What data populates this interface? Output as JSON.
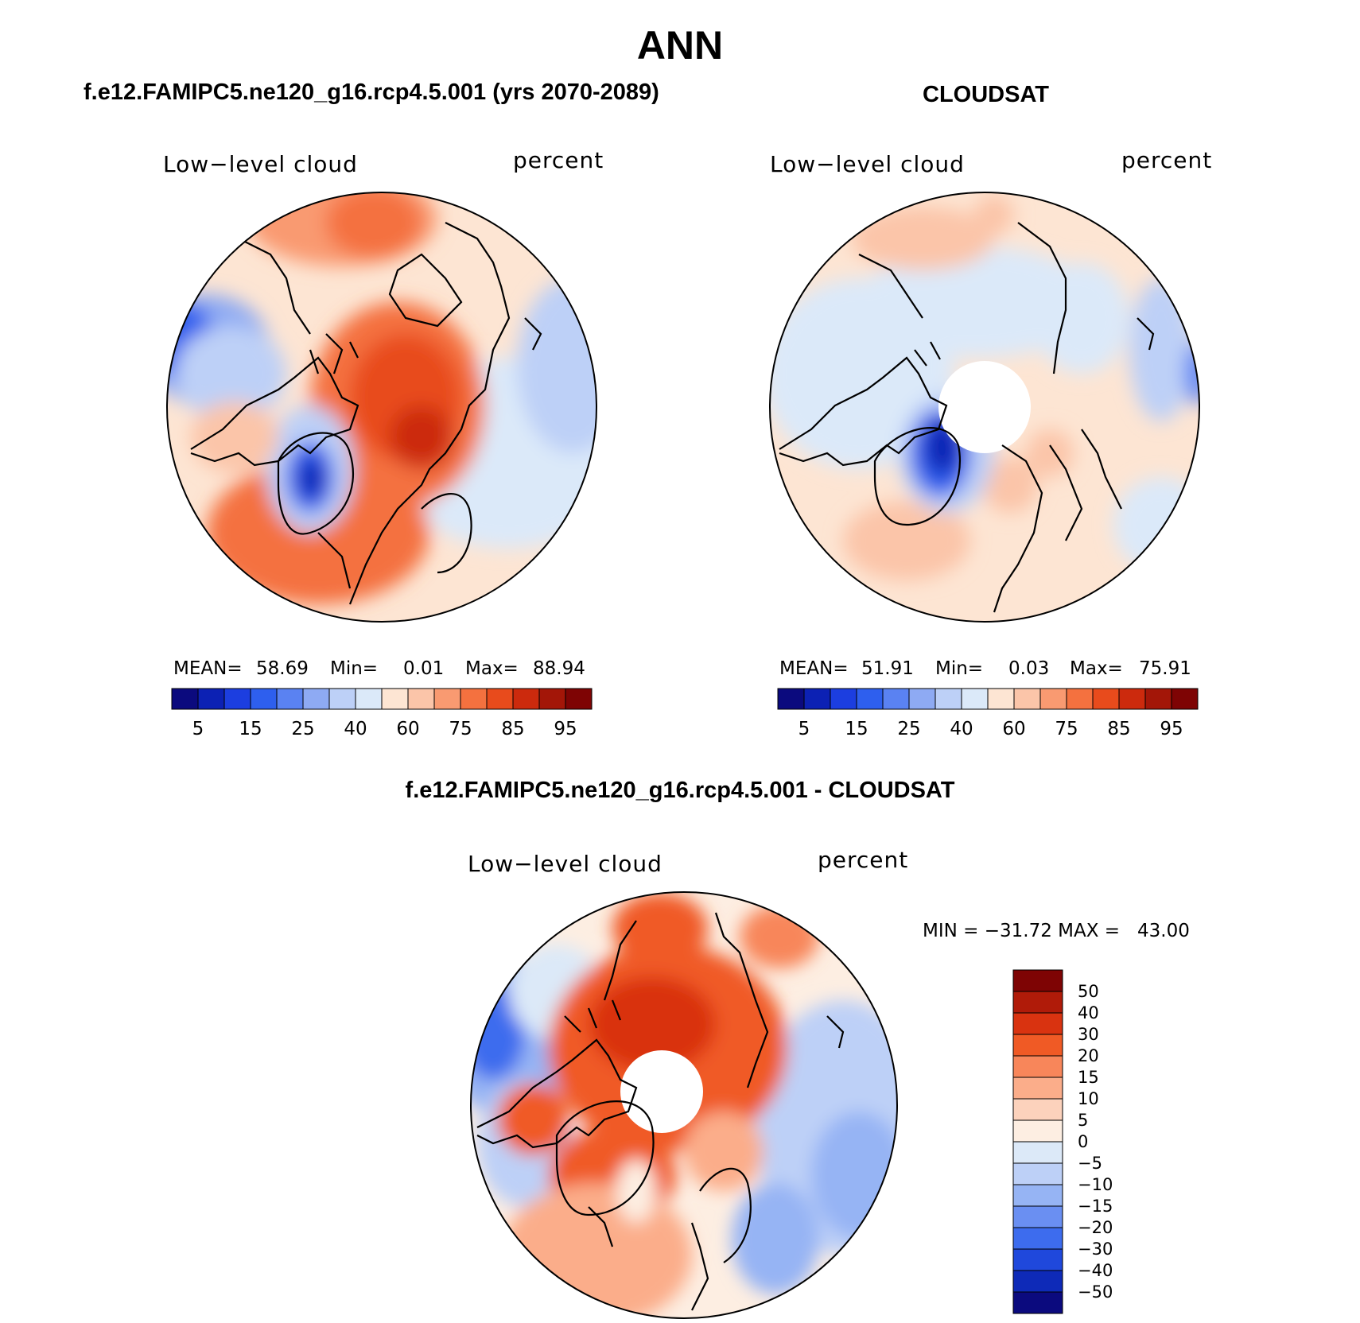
{
  "figure": {
    "title": "ANN",
    "left_title": "f.e12.FAMIPC5.ne120_g16.rcp4.5.001 (yrs 2070-2089)",
    "right_title": "CLOUDSAT",
    "bottom_title": "f.e12.FAMIPC5.ne120_g16.rcp4.5.001 - CLOUDSAT"
  },
  "panels": {
    "left": {
      "variable": "Low−level cloud",
      "units": "percent",
      "mean_label": "MEAN=",
      "mean": "58.69",
      "min_label": "Min=",
      "min": "0.01",
      "max_label": "Max=",
      "max": "88.94"
    },
    "right": {
      "variable": "Low−level cloud",
      "units": "percent",
      "mean_label": "MEAN=",
      "mean": "51.91",
      "min_label": "Min=",
      "min": "0.03",
      "max_label": "Max=",
      "max": "75.91"
    },
    "bottom": {
      "variable": "Low−level cloud",
      "units": "percent",
      "minmax": "MIN = −31.72 MAX =   43.00"
    }
  },
  "chart_data": [
    {
      "type": "heatmap",
      "title": "f.e12.FAMIPC5.ne120_g16.rcp4.5.001 (yrs 2070-2089)",
      "projection": "north polar stereographic",
      "variable": "Low-level cloud",
      "units": "percent",
      "mean": 58.69,
      "min": 0.01,
      "max": 88.94,
      "colorbar_ticks": [
        "5",
        "15",
        "25",
        "40",
        "60",
        "75",
        "85",
        "95"
      ]
    },
    {
      "type": "heatmap",
      "title": "CLOUDSAT",
      "projection": "north polar stereographic",
      "variable": "Low-level cloud",
      "units": "percent",
      "mean": 51.91,
      "min": 0.03,
      "max": 75.91,
      "colorbar_ticks": [
        "5",
        "15",
        "25",
        "40",
        "60",
        "75",
        "85",
        "95"
      ]
    },
    {
      "type": "heatmap",
      "title": "f.e12.FAMIPC5.ne120_g16.rcp4.5.001 - CLOUDSAT",
      "projection": "north polar stereographic",
      "variable": "Low-level cloud",
      "units": "percent",
      "min": -31.72,
      "max": 43.0,
      "colorbar_ticks": [
        "50",
        "40",
        "30",
        "20",
        "15",
        "10",
        "5",
        "0",
        "−5",
        "−10",
        "−15",
        "−20",
        "−30",
        "−40",
        "−50"
      ]
    }
  ],
  "colors": {
    "abs_scale": [
      "#0b0a7e",
      "#0c21b4",
      "#1c3ee0",
      "#2e5fee",
      "#5a82f2",
      "#8eaaf3",
      "#bdd0f7",
      "#dbe9f9",
      "#fde5d3",
      "#fbc5a9",
      "#f99a71",
      "#f4713f",
      "#e84b1c",
      "#cc2a0d",
      "#a31608",
      "#7e0404"
    ],
    "diff_scale": [
      "#7e0404",
      "#b01b09",
      "#d93310",
      "#f05a25",
      "#f8865a",
      "#fbad8a",
      "#fcd2bc",
      "#fdeee2",
      "#dce9f8",
      "#bdd0f7",
      "#96b4f4",
      "#6a8ff2",
      "#3d6cee",
      "#1f48dc",
      "#0e2ab8",
      "#0b0a7e"
    ]
  }
}
